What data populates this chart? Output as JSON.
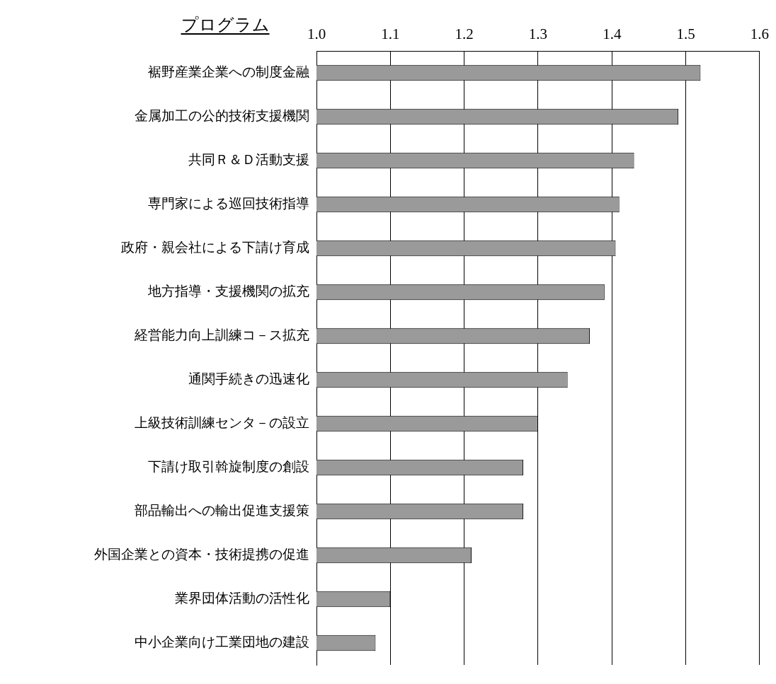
{
  "chart_data": {
    "type": "bar",
    "orientation": "horizontal",
    "ylabel": "プログラム",
    "categories": [
      "裾野産業企業への制度金融",
      "金属加工の公的技術支援機関",
      "共同Ｒ＆Ｄ活動支援",
      "専門家による巡回技術指導",
      "政府・親会社による下請け育成",
      "地方指導・支援機関の拡充",
      "経営能力向上訓練コ－ス拡充",
      "通関手続きの迅速化",
      "上級技術訓練センタ－の設立",
      "下請け取引斡旋制度の創設",
      "部品輸出への輸出促進支援策",
      "外国企業との資本・技術提携の促進",
      "業界団体活動の活性化",
      "中小企業向け工業団地の建設"
    ],
    "values": [
      1.52,
      1.49,
      1.43,
      1.41,
      1.405,
      1.39,
      1.37,
      1.34,
      1.3,
      1.28,
      1.28,
      1.21,
      1.1,
      1.08
    ],
    "color": "#9a9a9a",
    "xlim": [
      1.0,
      1.6
    ],
    "xticks": [
      {
        "value": 1,
        "label": "1.0"
      },
      1.1,
      1.2,
      1.3,
      1.4,
      1.5,
      1.6
    ],
    "grid": "x",
    "legend": false
  }
}
